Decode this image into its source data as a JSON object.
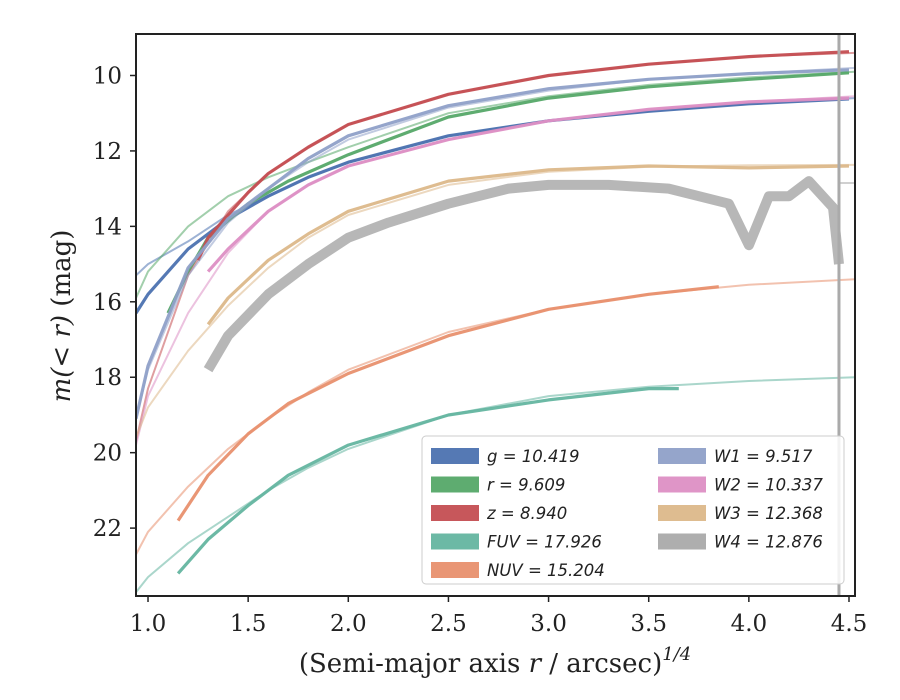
{
  "chart_data": {
    "type": "line",
    "title": "",
    "xlabel_text": "(Semi-major axis ",
    "xlabel_var": "r",
    "xlabel_mid": " / arcsec)",
    "xlabel_sup": "1/4",
    "ylabel_pre": "m",
    "ylabel_mid": "(< r) ",
    "ylabel_post": "(mag)",
    "xlim": [
      0.94,
      4.53
    ],
    "ylim": [
      23.8,
      8.9
    ],
    "y_inverted": true,
    "xticks": [
      "1.0",
      "1.5",
      "2.0",
      "2.5",
      "3.0",
      "3.5",
      "4.0",
      "4.5"
    ],
    "xtick_values": [
      1.0,
      1.5,
      2.0,
      2.5,
      3.0,
      3.5,
      4.0,
      4.5
    ],
    "yticks": [
      "10",
      "12",
      "14",
      "16",
      "18",
      "20",
      "22"
    ],
    "ytick_values": [
      10,
      12,
      14,
      16,
      18,
      20,
      22
    ],
    "grid": false,
    "legend_position": "lower-right",
    "series": [
      {
        "name": "g",
        "label": "g = 10.419",
        "color": "#4c72b0",
        "x": [
          0.94,
          1.0,
          1.2,
          1.4,
          1.6,
          1.8,
          2.0,
          2.5,
          3.0,
          3.5,
          4.0,
          4.5
        ],
        "y": [
          16.3,
          15.8,
          14.6,
          13.8,
          13.2,
          12.7,
          12.3,
          11.6,
          11.2,
          10.95,
          10.75,
          10.62
        ],
        "model_x": [
          0.94,
          1.0,
          1.2,
          1.4,
          1.6,
          1.8,
          2.0,
          2.5,
          3.0,
          3.5,
          4.0,
          4.53
        ],
        "model_y": [
          15.3,
          15.0,
          14.4,
          13.7,
          13.2,
          12.7,
          12.3,
          11.6,
          11.2,
          10.95,
          10.75,
          10.6
        ]
      },
      {
        "name": "r",
        "label": "r = 9.609",
        "color": "#55a868",
        "x": [
          1.1,
          1.2,
          1.3,
          1.5,
          1.7,
          2.0,
          2.5,
          3.0,
          3.5,
          4.0,
          4.5
        ],
        "y": [
          16.3,
          15.2,
          14.3,
          13.4,
          12.8,
          12.1,
          11.1,
          10.6,
          10.3,
          10.1,
          9.93
        ],
        "model_x": [
          0.94,
          1.0,
          1.2,
          1.4,
          1.6,
          1.8,
          2.0,
          2.5,
          3.0,
          3.5,
          4.0,
          4.53
        ],
        "model_y": [
          15.9,
          15.2,
          14.0,
          13.2,
          12.7,
          12.3,
          11.9,
          11.0,
          10.55,
          10.25,
          10.05,
          9.9
        ]
      },
      {
        "name": "z",
        "label": "z = 8.940",
        "color": "#c44e52",
        "x": [
          1.25,
          1.3,
          1.4,
          1.5,
          1.6,
          1.8,
          2.0,
          2.5,
          3.0,
          3.5,
          4.0,
          4.5
        ],
        "y": [
          14.9,
          14.3,
          13.7,
          13.1,
          12.6,
          11.9,
          11.3,
          10.5,
          10.0,
          9.7,
          9.5,
          9.37
        ],
        "model_x": [
          0.94,
          1.0,
          1.2,
          1.4,
          1.6,
          1.8,
          2.0,
          2.5,
          3.0,
          3.5,
          4.0,
          4.53
        ],
        "model_y": [
          19.7,
          18.3,
          15.3,
          13.6,
          12.6,
          11.9,
          11.3,
          10.5,
          10.0,
          9.7,
          9.5,
          9.4
        ]
      },
      {
        "name": "FUV",
        "label": "FUV = 17.926",
        "color": "#64b5a0",
        "x": [
          1.15,
          1.3,
          1.5,
          1.7,
          2.0,
          2.5,
          3.0,
          3.5,
          3.65
        ],
        "y": [
          23.2,
          22.3,
          21.4,
          20.6,
          19.8,
          19.0,
          18.6,
          18.3,
          18.3
        ],
        "model_x": [
          0.94,
          1.0,
          1.2,
          1.4,
          1.6,
          1.8,
          2.0,
          2.5,
          3.0,
          3.5,
          4.0,
          4.53
        ],
        "model_y": [
          23.7,
          23.3,
          22.4,
          21.7,
          21.0,
          20.4,
          19.9,
          19.0,
          18.5,
          18.25,
          18.1,
          18.0
        ]
      },
      {
        "name": "NUV",
        "label": "NUV = 15.204",
        "color": "#e8906e",
        "x": [
          1.15,
          1.3,
          1.5,
          1.7,
          2.0,
          2.5,
          3.0,
          3.5,
          3.85
        ],
        "y": [
          21.8,
          20.6,
          19.5,
          18.7,
          17.9,
          16.9,
          16.2,
          15.8,
          15.6
        ],
        "model_x": [
          0.94,
          1.0,
          1.2,
          1.4,
          1.6,
          1.8,
          2.0,
          2.5,
          3.0,
          3.5,
          4.0,
          4.53
        ],
        "model_y": [
          22.7,
          22.1,
          20.9,
          19.9,
          19.1,
          18.4,
          17.8,
          16.8,
          16.2,
          15.8,
          15.55,
          15.4
        ]
      },
      {
        "name": "W1",
        "label": "W1 = 9.517",
        "color": "#8fa0c8",
        "x": [
          0.94,
          1.0,
          1.2,
          1.4,
          1.6,
          1.8,
          2.0,
          2.5,
          3.0,
          3.5,
          4.0,
          4.5
        ],
        "y": [
          19.1,
          17.7,
          15.1,
          13.8,
          13.0,
          12.2,
          11.6,
          10.8,
          10.35,
          10.1,
          9.95,
          9.85
        ],
        "model_x": [
          0.94,
          1.0,
          1.2,
          1.4,
          1.6,
          1.8,
          2.0,
          2.5,
          3.0,
          3.5,
          4.0,
          4.53
        ],
        "model_y": [
          19.1,
          17.8,
          15.3,
          13.9,
          13.0,
          12.3,
          11.7,
          10.85,
          10.4,
          10.1,
          9.95,
          9.8
        ]
      },
      {
        "name": "W2",
        "label": "W2 = 10.337",
        "color": "#dd8fc4",
        "x": [
          1.3,
          1.4,
          1.6,
          1.8,
          2.0,
          2.5,
          3.0,
          3.5,
          4.0,
          4.5
        ],
        "y": [
          15.2,
          14.6,
          13.6,
          12.9,
          12.4,
          11.7,
          11.2,
          10.9,
          10.7,
          10.6
        ],
        "model_x": [
          0.94,
          1.0,
          1.2,
          1.4,
          1.6,
          1.8,
          2.0,
          2.5,
          3.0,
          3.5,
          4.0,
          4.53
        ],
        "model_y": [
          19.8,
          18.5,
          16.3,
          14.7,
          13.6,
          12.9,
          12.4,
          11.7,
          11.2,
          10.9,
          10.7,
          10.55
        ]
      },
      {
        "name": "W3",
        "label": "W3 = 12.368",
        "color": "#dcb88a",
        "x": [
          1.3,
          1.4,
          1.6,
          1.8,
          2.0,
          2.5,
          3.0,
          3.5,
          4.0,
          4.5
        ],
        "y": [
          16.6,
          15.9,
          14.9,
          14.2,
          13.6,
          12.8,
          12.5,
          12.4,
          12.45,
          12.4
        ],
        "model_x": [
          0.94,
          1.0,
          1.2,
          1.4,
          1.6,
          1.8,
          2.0,
          2.5,
          3.0,
          3.5,
          4.0,
          4.53
        ],
        "model_y": [
          19.6,
          18.8,
          17.3,
          16.1,
          15.1,
          14.3,
          13.7,
          12.9,
          12.55,
          12.42,
          12.38,
          12.37
        ]
      },
      {
        "name": "W4",
        "label": "W4 = 12.876",
        "color": "#aaaaaa",
        "x": [
          1.3,
          1.4,
          1.6,
          1.8,
          2.0,
          2.2,
          2.5,
          2.8,
          3.0,
          3.3,
          3.6,
          3.9,
          4.0,
          4.1,
          4.2,
          4.3,
          4.42,
          4.45
        ],
        "y": [
          17.8,
          16.9,
          15.8,
          15.0,
          14.3,
          13.9,
          13.4,
          13.0,
          12.9,
          12.9,
          13.0,
          13.4,
          14.5,
          13.2,
          13.2,
          12.8,
          13.5,
          15.0
        ],
        "model_x": [
          4.45,
          4.53
        ],
        "model_y": [
          12.85,
          12.85
        ]
      }
    ]
  }
}
